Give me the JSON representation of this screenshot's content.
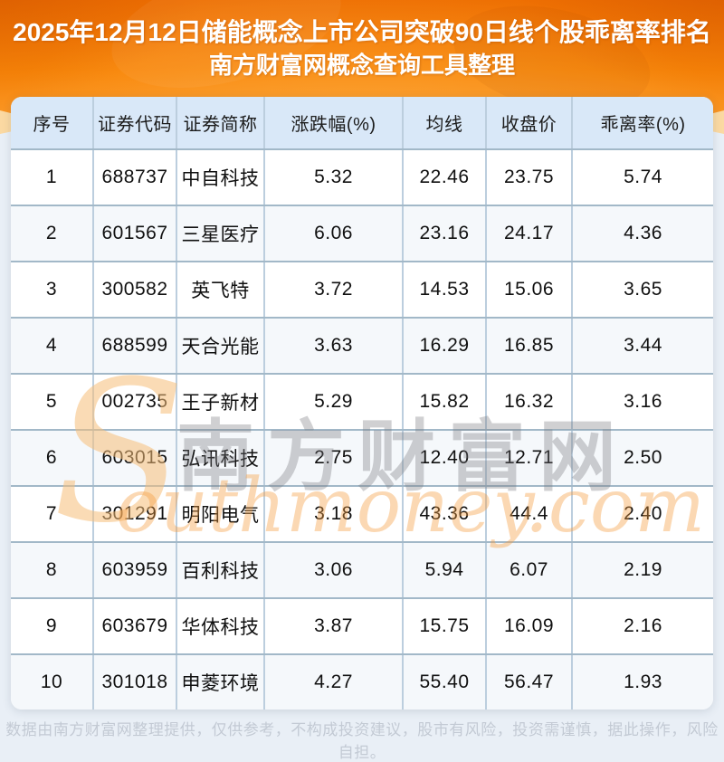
{
  "title": {
    "line1": "2025年12月12日储能概念上市公司突破90日线个股乖离率排名",
    "line2": "南方财富网概念查询工具整理"
  },
  "table": {
    "headers": [
      "序号",
      "证券代码",
      "证券简称",
      "涨跌幅(%)",
      "均线",
      "收盘价",
      "乖离率(%)"
    ],
    "rows": [
      [
        "1",
        "688737",
        "中自科技",
        "5.32",
        "22.46",
        "23.75",
        "5.74"
      ],
      [
        "2",
        "601567",
        "三星医疗",
        "6.06",
        "23.16",
        "24.17",
        "4.36"
      ],
      [
        "3",
        "300582",
        "英飞特",
        "3.72",
        "14.53",
        "15.06",
        "3.65"
      ],
      [
        "4",
        "688599",
        "天合光能",
        "3.63",
        "16.29",
        "16.85",
        "3.44"
      ],
      [
        "5",
        "002735",
        "王子新材",
        "5.29",
        "15.82",
        "16.32",
        "3.16"
      ],
      [
        "6",
        "603015",
        "弘讯科技",
        "2.75",
        "12.40",
        "12.71",
        "2.50"
      ],
      [
        "7",
        "301291",
        "明阳电气",
        "3.18",
        "43.36",
        "44.4",
        "2.40"
      ],
      [
        "8",
        "603959",
        "百利科技",
        "3.06",
        "5.94",
        "6.07",
        "2.19"
      ],
      [
        "9",
        "603679",
        "华体科技",
        "3.87",
        "15.75",
        "16.09",
        "2.16"
      ],
      [
        "10",
        "301018",
        "申菱环境",
        "4.27",
        "55.40",
        "56.47",
        "1.93"
      ]
    ]
  },
  "watermark": {
    "initial": "S",
    "cn": "南方财富网",
    "en": "outhmoney.com"
  },
  "footer": {
    "disclaimer": "数据由南方财富网整理提供，仅供参考，不构成投资建议，股市有风险，投资需谨慎，据此操作，风险自担。"
  },
  "colors": {
    "banner_orange": "#f88508",
    "banner_wedge": "#fbd9a2",
    "panel": "#e9eff6",
    "header_blue": "#d9e8f8",
    "row_alt": "#f5f8fb",
    "border": "#a2b8c8",
    "watermark_orange": "#f69e42",
    "footer_text": "#c3cad4"
  }
}
